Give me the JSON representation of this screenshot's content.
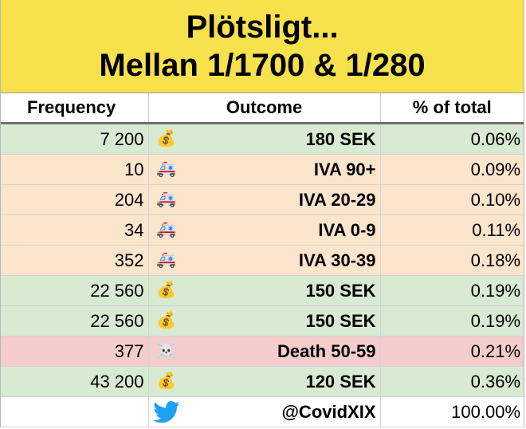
{
  "title": {
    "line1": "Plötsligt...",
    "line2": "Mellan 1/1700 & 1/280"
  },
  "headers": {
    "frequency": "Frequency",
    "outcome": "Outcome",
    "percent": "% of total"
  },
  "rows": [
    {
      "frequency": "7 200",
      "icon": "money-bag-icon",
      "glyph": "💰",
      "outcome": "180 SEK",
      "percent": "0.06%",
      "tone": "green"
    },
    {
      "frequency": "10",
      "icon": "ambulance-icon",
      "glyph": "🚑",
      "outcome": "IVA 90+",
      "percent": "0.09%",
      "tone": "orange"
    },
    {
      "frequency": "204",
      "icon": "ambulance-icon",
      "glyph": "🚑",
      "outcome": "IVA 20-29",
      "percent": "0.10%",
      "tone": "orange"
    },
    {
      "frequency": "34",
      "icon": "ambulance-icon",
      "glyph": "🚑",
      "outcome": "IVA 0-9",
      "percent": "0.11%",
      "tone": "orange"
    },
    {
      "frequency": "352",
      "icon": "ambulance-icon",
      "glyph": "🚑",
      "outcome": "IVA 30-39",
      "percent": "0.18%",
      "tone": "orange"
    },
    {
      "frequency": "22 560",
      "icon": "money-bag-icon",
      "glyph": "💰",
      "outcome": "150 SEK",
      "percent": "0.19%",
      "tone": "green"
    },
    {
      "frequency": "22 560",
      "icon": "money-bag-icon",
      "glyph": "💰",
      "outcome": "150 SEK",
      "percent": "0.19%",
      "tone": "green"
    },
    {
      "frequency": "377",
      "icon": "skull-crossbones-icon",
      "glyph": "☠️",
      "outcome": "Death 50-59",
      "percent": "0.21%",
      "tone": "red"
    },
    {
      "frequency": "43 200",
      "icon": "money-bag-icon",
      "glyph": "💰",
      "outcome": "120 SEK",
      "percent": "0.36%",
      "tone": "green"
    }
  ],
  "footer": {
    "icon": "twitter-bird-icon",
    "handle": "@CovidXIX",
    "percent": "100.00%"
  },
  "colors": {
    "title_bg": "#f7e14c",
    "green": "#d9ead3",
    "orange": "#fce5cd",
    "red": "#f4cccc",
    "twitter": "#1da1f2"
  }
}
